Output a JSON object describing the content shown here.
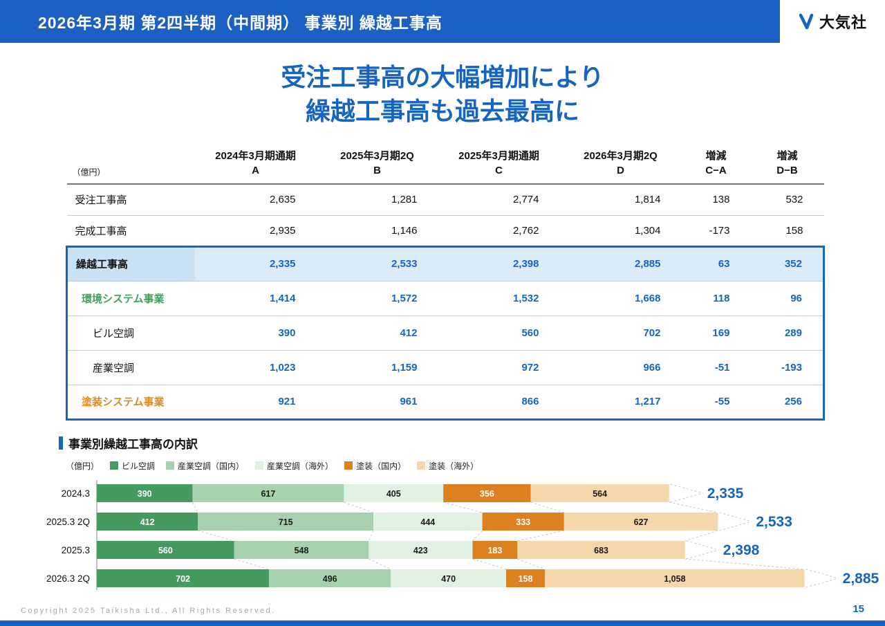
{
  "header": {
    "title": "2026年3月期 第2四半期（中間期） 事業別 繰越工事高",
    "logo_text": "大気社"
  },
  "headline": {
    "line1": "受注工事高の大幅増加により",
    "line2": "繰越工事高も過去最高に"
  },
  "table": {
    "unit_label": "（億円）",
    "columns": [
      {
        "line1": "2024年3月期通期",
        "line2": "A"
      },
      {
        "line1": "2025年3月期2Q",
        "line2": "B"
      },
      {
        "line1": "2025年3月期通期",
        "line2": "C"
      },
      {
        "line1": "2026年3月期2Q",
        "line2": "D"
      },
      {
        "line1": "増減",
        "line2": "C−A"
      },
      {
        "line1": "増減",
        "line2": "D−B"
      }
    ],
    "rows": [
      {
        "label": "受注工事高",
        "values": [
          "2,635",
          "1,281",
          "2,774",
          "1,814",
          "138",
          "532"
        ]
      },
      {
        "label": "完成工事高",
        "values": [
          "2,935",
          "1,146",
          "2,762",
          "1,304",
          "-173",
          "158"
        ]
      },
      {
        "label": "繰越工事高",
        "values": [
          "2,335",
          "2,533",
          "2,398",
          "2,885",
          "63",
          "352"
        ]
      },
      {
        "label": "環境システム事業",
        "values": [
          "1,414",
          "1,572",
          "1,532",
          "1,668",
          "118",
          "96"
        ]
      },
      {
        "label": "ビル空調",
        "values": [
          "390",
          "412",
          "560",
          "702",
          "169",
          "289"
        ]
      },
      {
        "label": "産業空調",
        "values": [
          "1,023",
          "1,159",
          "972",
          "966",
          "-51",
          "-193"
        ]
      },
      {
        "label": "塗装システム事業",
        "values": [
          "921",
          "961",
          "866",
          "1,217",
          "-55",
          "256"
        ]
      }
    ]
  },
  "chart_section": {
    "title": "事業別繰越工事高の内訳",
    "unit_label": "（億円）"
  },
  "chart_data": {
    "type": "bar",
    "orientation": "horizontal",
    "stacked": true,
    "categories": [
      "2024.3",
      "2025.3 2Q",
      "2025.3",
      "2026.3 2Q"
    ],
    "series": [
      {
        "name": "ビル空調",
        "color": "#449a5f",
        "values": [
          390,
          412,
          560,
          702
        ]
      },
      {
        "name": "産業空調（国内）",
        "color": "#a7d1ae",
        "values": [
          617,
          715,
          548,
          496
        ]
      },
      {
        "name": "産業空調（海外）",
        "color": "#e0f0e2",
        "values": [
          405,
          444,
          423,
          470
        ]
      },
      {
        "name": "塗装（国内）",
        "color": "#dd801f",
        "values": [
          356,
          333,
          183,
          158
        ]
      },
      {
        "name": "塗装（海外）",
        "color": "#f6d7ab",
        "values": [
          564,
          627,
          683,
          1058
        ]
      }
    ],
    "totals": [
      "2,335",
      "2,533",
      "2,398",
      "2,885"
    ],
    "xmax": 2885,
    "legend_position": "top",
    "grid": false
  },
  "footer": {
    "copyright": "Copyright  2025 Taikisha Ltd., All Rights Reserved.",
    "page_number": "15"
  },
  "colors": {
    "accent": "#1565c0",
    "header_bg": "#1b60c2",
    "highlight_row_bg": "#dcebf8",
    "highlight_label_bg": "#c9e2f6",
    "green_label": "#43a05f",
    "orange_label": "#dd8a1f"
  }
}
